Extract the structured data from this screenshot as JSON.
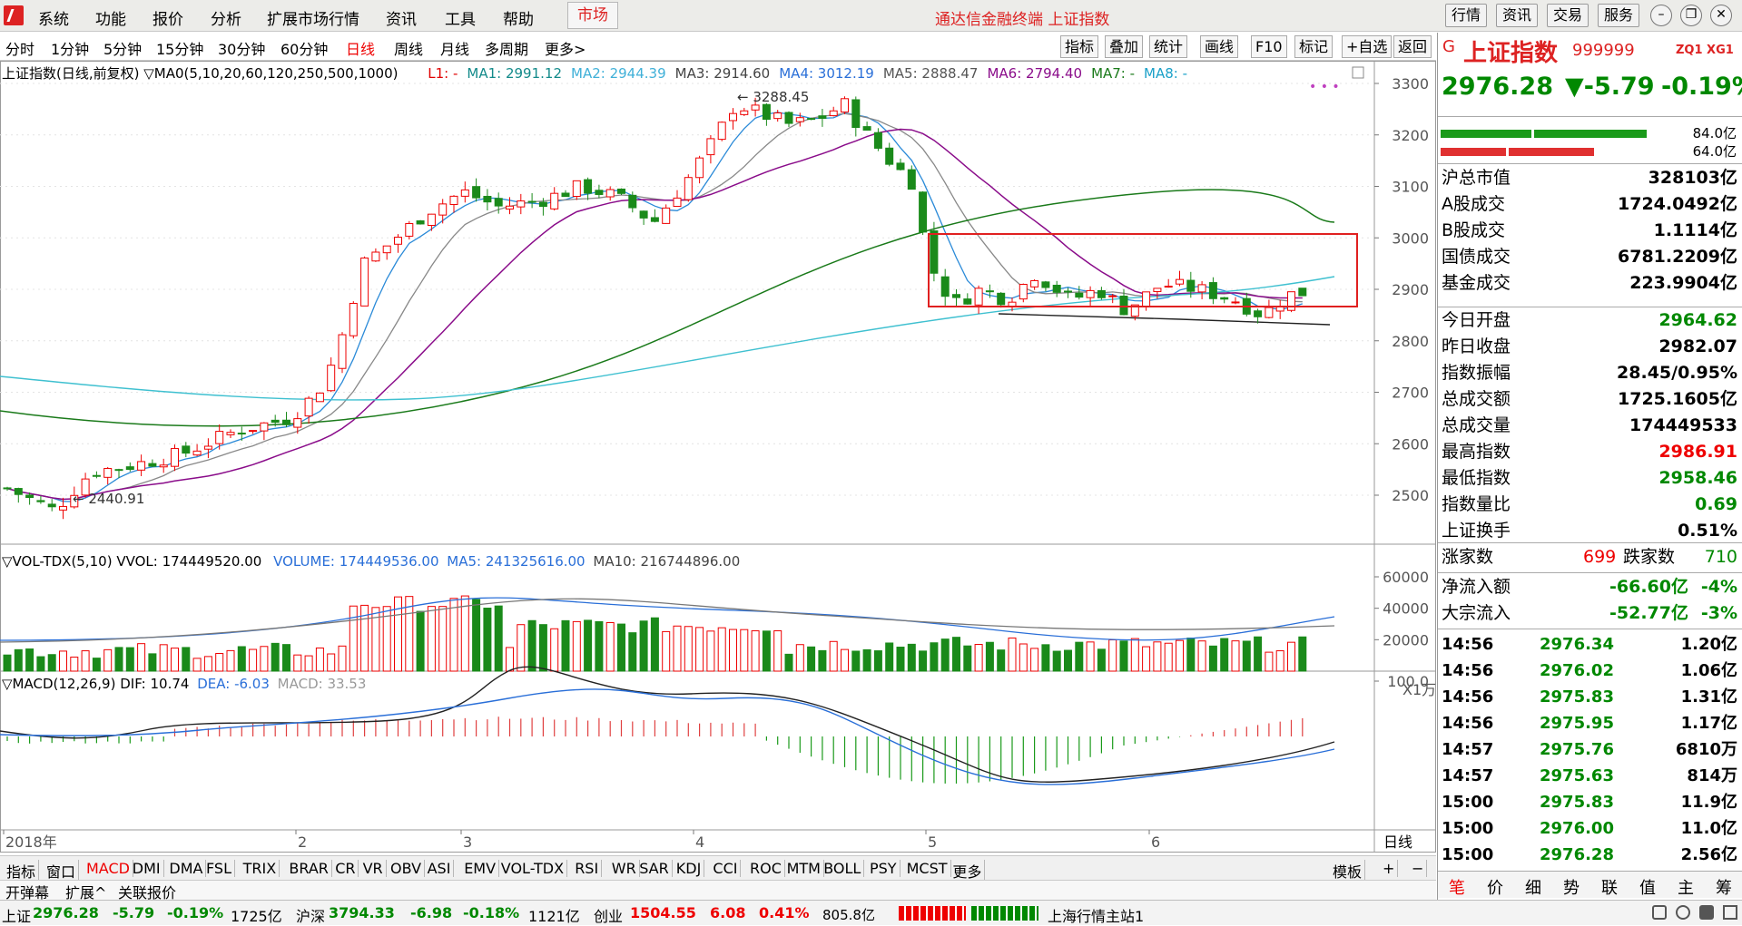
{
  "menu": {
    "items": [
      "系统",
      "功能",
      "报价",
      "分析",
      "扩展市场行情",
      "资讯",
      "工具",
      "帮助"
    ],
    "active": "市场",
    "title": "通达信金融终端 上证指数",
    "right": [
      "行情",
      "资讯",
      "交易",
      "服务"
    ]
  },
  "periods": {
    "items": [
      "分时",
      "1分钟",
      "5分钟",
      "15分钟",
      "30分钟",
      "60分钟",
      "日线",
      "周线",
      "月线",
      "多周期",
      "更多>"
    ],
    "active": "日线"
  },
  "toolbar": [
    "指标",
    "叠加",
    "统计",
    "画线",
    "F10",
    "标记",
    "+自选",
    "返回"
  ],
  "legend": {
    "title": "上证指数(日线,前复权) ▽MA0(5,10,20,60,120,250,500,1000)",
    "items": [
      {
        "t": "L1: -",
        "c": "#e00000"
      },
      {
        "t": "MA1: 2991.12",
        "c": "#138a8a"
      },
      {
        "t": "MA2: 2944.39",
        "c": "#3fb0d8"
      },
      {
        "t": "MA3: 2914.60",
        "c": "#444444"
      },
      {
        "t": "MA4: 3012.19",
        "c": "#2a6fd8"
      },
      {
        "t": "MA5: 2888.47",
        "c": "#555555"
      },
      {
        "t": "MA6: 2794.40",
        "c": "#8a0c8a"
      },
      {
        "t": "MA7: -",
        "c": "#1a7a1a"
      },
      {
        "t": "MA8: -",
        "c": "#1aa0c8"
      }
    ]
  },
  "price_annotations": {
    "high": "3288.45",
    "low": "2440.91"
  },
  "price_axis": [
    "3300",
    "3200",
    "3100",
    "3000",
    "2900",
    "2800",
    "2700",
    "2600",
    "2500"
  ],
  "vol": {
    "legend": "▽VOL-TDX(5,10) VVOL: 174449520.00",
    "volume": "VOLUME: 174449536.00",
    "ma5": "MA5: 241325616.00",
    "ma10": "MA10: 216744896.00",
    "axis": [
      "60000",
      "40000",
      "20000"
    ],
    "unit": "X1万"
  },
  "macd": {
    "legend": "▽MACD(12,26,9) DIF: 10.74",
    "dea": "DEA: -6.03",
    "macd": "MACD: 33.53",
    "axis": "100.0"
  },
  "time_axis": {
    "labels": [
      "2018年",
      "2",
      "3",
      "4",
      "5",
      "6"
    ],
    "period": "日线"
  },
  "indicators": [
    "指标",
    "窗口",
    "MACD",
    "DMI",
    "DMA",
    "FSL",
    "TRIX",
    "BRAR",
    "CR",
    "VR",
    "OBV",
    "ASI",
    "EMV",
    "VOL-TDX",
    "RSI",
    "WR",
    "SAR",
    "KDJ",
    "CCI",
    "ROC",
    "MTM",
    "BOLL",
    "PSY",
    "MCST",
    "更多"
  ],
  "indicators_active": "MACD",
  "bottom2": [
    "开弹幕",
    "扩展^",
    "关联报价"
  ],
  "template": "模板",
  "panel": {
    "code_prefix": "G",
    "name": "上证指数",
    "code": "999999",
    "tags": "ZQ1 XG1",
    "price": "2976.28",
    "change": "▼-5.79",
    "pct": "-0.19%",
    "bar1": "84.0亿",
    "bar2": "64.0亿",
    "rows1": [
      {
        "k": "沪总市值",
        "v": "328103亿",
        "c": "#000"
      },
      {
        "k": "A股成交",
        "v": "1724.0492亿",
        "c": "#000"
      },
      {
        "k": "B股成交",
        "v": "1.1114亿",
        "c": "#000"
      },
      {
        "k": "国债成交",
        "v": "6781.2209亿",
        "c": "#000"
      },
      {
        "k": "基金成交",
        "v": "223.9904亿",
        "c": "#000"
      }
    ],
    "rows2": [
      {
        "k": "今日开盘",
        "v": "2964.62",
        "c": "#080"
      },
      {
        "k": "昨日收盘",
        "v": "2982.07",
        "c": "#000"
      },
      {
        "k": "指数振幅",
        "v": "28.45/0.95%",
        "c": "#000"
      },
      {
        "k": "总成交额",
        "v": "1725.1605亿",
        "c": "#000"
      },
      {
        "k": "总成交量",
        "v": "174449533",
        "c": "#000"
      },
      {
        "k": "最高指数",
        "v": "2986.91",
        "c": "#e00"
      },
      {
        "k": "最低指数",
        "v": "2958.46",
        "c": "#080"
      },
      {
        "k": "指数量比",
        "v": "0.69",
        "c": "#080"
      },
      {
        "k": "上证换手",
        "v": "0.51%",
        "c": "#000"
      }
    ],
    "updown": {
      "up_label": "涨家数",
      "up": "699",
      "down_label": "跌家数",
      "down": "710"
    },
    "flow": [
      {
        "k": "净流入额",
        "v": "-66.60亿",
        "p": "-4%"
      },
      {
        "k": "大宗流入",
        "v": "-52.77亿",
        "p": "-3%"
      }
    ],
    "ticks": [
      {
        "t": "14:56",
        "p": "2976.34",
        "a": "1.20亿"
      },
      {
        "t": "14:56",
        "p": "2976.02",
        "a": "1.06亿"
      },
      {
        "t": "14:56",
        "p": "2975.83",
        "a": "1.31亿"
      },
      {
        "t": "14:56",
        "p": "2975.95",
        "a": "1.17亿"
      },
      {
        "t": "14:57",
        "p": "2975.76",
        "a": "6810万"
      },
      {
        "t": "14:57",
        "p": "2975.63",
        "a": "814万"
      },
      {
        "t": "15:00",
        "p": "2975.83",
        "a": "11.9亿"
      },
      {
        "t": "15:00",
        "p": "2976.00",
        "a": "11.0亿"
      },
      {
        "t": "15:00",
        "p": "2976.28",
        "a": "2.56亿"
      }
    ],
    "tabs": [
      "笔",
      "价",
      "细",
      "势",
      "联",
      "值",
      "主",
      "筹"
    ]
  },
  "status": {
    "sh_label": "上证",
    "sh": "2976.28",
    "sh_ch": "-5.79",
    "sh_pct": "-0.19%",
    "sh_amt": "1725亿",
    "sz_label": "沪深",
    "sz": "3794.33",
    "sz_ch": "-6.98",
    "sz_pct": "-0.18%",
    "sz_amt": "1121亿",
    "cy_label": "创业",
    "cy": "1504.55",
    "cy_ch": "6.08",
    "cy_pct": "0.41%",
    "cy_amt": "805.8亿",
    "server": "上海行情主站1"
  }
}
